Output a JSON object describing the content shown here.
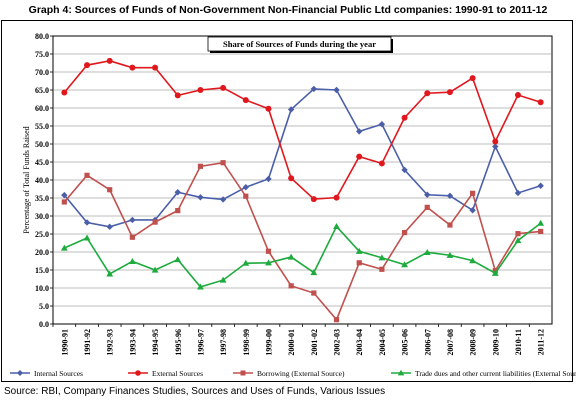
{
  "title": "Graph 4: Sources of Funds of Non-Government Non-Financial Public Ltd companies: 1990-91 to 2011-12",
  "source": "Source: RBI, Company Finances Studies, Sources and Uses of Funds, Various Issues",
  "chart_data": {
    "type": "line",
    "inner_title": "Share of Sources of Funds during the year",
    "ylabel": "Percentage of Total Funds Raised",
    "xlabel": "",
    "ylim": [
      0,
      80
    ],
    "yticks": [
      "0.0",
      "5.0",
      "10.0",
      "15.0",
      "20.0",
      "25.0",
      "30.0",
      "35.0",
      "40.0",
      "45.0",
      "50.0",
      "55.0",
      "60.0",
      "65.0",
      "70.0",
      "75.0",
      "80.0"
    ],
    "grid": true,
    "legend": "bottom",
    "categories": [
      "1990-91",
      "1991-92",
      "1992-93",
      "1993-94",
      "1994-95",
      "1995-96",
      "1996-97",
      "1997-98",
      "1998-99",
      "1999-00",
      "2000-01",
      "2001-02",
      "2002-03",
      "2003-04",
      "2004-05",
      "2005-06",
      "2006-07",
      "2007-08",
      "2008-09",
      "2009-10",
      "2010-11",
      "2011-12"
    ],
    "series": [
      {
        "name": "Internal Sources",
        "color": "#4a5fa8",
        "marker": "diamond",
        "values": [
          35.8,
          28.2,
          27.0,
          28.9,
          28.9,
          36.6,
          35.2,
          34.6,
          38.0,
          40.3,
          59.6,
          65.3,
          65.0,
          53.5,
          55.5,
          42.8,
          35.9,
          35.6,
          31.6,
          49.3,
          36.4,
          38.4
        ]
      },
      {
        "name": "External Sources",
        "color": "#e0171c",
        "marker": "circle",
        "values": [
          64.3,
          71.9,
          73.1,
          71.2,
          71.2,
          63.5,
          65.0,
          65.6,
          62.2,
          59.8,
          40.5,
          34.7,
          35.1,
          46.5,
          44.6,
          57.3,
          64.1,
          64.4,
          68.3,
          50.7,
          63.6,
          61.6
        ]
      },
      {
        "name": "Borrowing (External Source)",
        "color": "#c0504d",
        "marker": "square",
        "values": [
          33.9,
          41.3,
          37.3,
          24.1,
          28.3,
          31.5,
          43.8,
          44.8,
          35.5,
          20.2,
          10.6,
          8.6,
          1.2,
          17.0,
          15.2,
          25.4,
          32.4,
          27.5,
          36.3,
          14.8,
          25.1,
          25.7
        ]
      },
      {
        "name": "Trade dues and other current liabilities (External Source)",
        "color": "#1dab3e",
        "marker": "triangle",
        "values": [
          21.1,
          23.9,
          13.9,
          17.4,
          15.0,
          17.9,
          10.3,
          12.2,
          16.9,
          17.0,
          18.6,
          14.3,
          27.1,
          20.2,
          18.4,
          16.5,
          19.9,
          19.1,
          17.6,
          14.1,
          23.2,
          28.0
        ]
      }
    ]
  }
}
